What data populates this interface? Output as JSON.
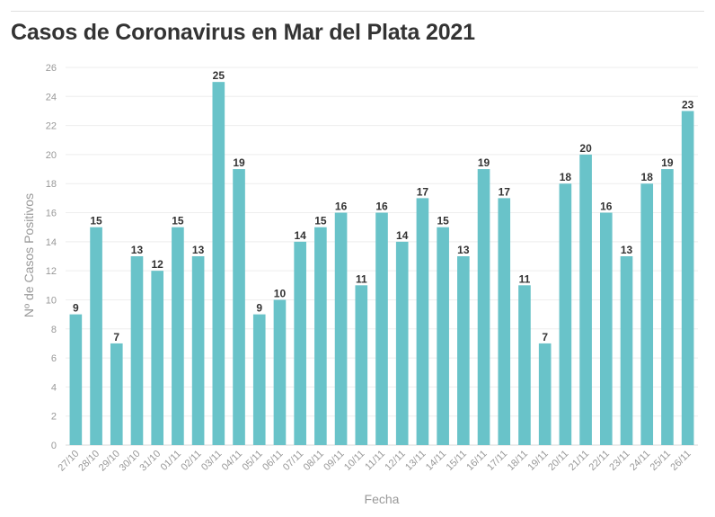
{
  "title": "Casos de Coronavirus en Mar del Plata 2021",
  "chart_data": {
    "type": "bar",
    "title": "Casos de Coronavirus en Mar del Plata 2021",
    "xlabel": "Fecha",
    "ylabel": "Nº de Casos Positivos",
    "categories": [
      "27/10",
      "28/10",
      "29/10",
      "30/10",
      "31/10",
      "01/11",
      "02/11",
      "03/11",
      "04/11",
      "05/11",
      "06/11",
      "07/11",
      "08/11",
      "09/11",
      "10/11",
      "11/11",
      "12/11",
      "13/11",
      "14/11",
      "15/11",
      "16/11",
      "17/11",
      "18/11",
      "19/11",
      "20/11",
      "21/11",
      "22/11",
      "23/11",
      "24/11",
      "25/11",
      "26/11"
    ],
    "values": [
      9,
      15,
      7,
      13,
      12,
      15,
      13,
      25,
      19,
      9,
      10,
      14,
      15,
      16,
      11,
      16,
      14,
      17,
      15,
      13,
      19,
      17,
      11,
      7,
      18,
      20,
      16,
      13,
      18,
      19,
      23
    ],
    "ylim": [
      0,
      26
    ],
    "yticks": [
      0,
      2,
      4,
      6,
      8,
      10,
      12,
      14,
      16,
      18,
      20,
      22,
      24,
      26
    ],
    "grid": true,
    "bar_color": "#69c3c9"
  }
}
